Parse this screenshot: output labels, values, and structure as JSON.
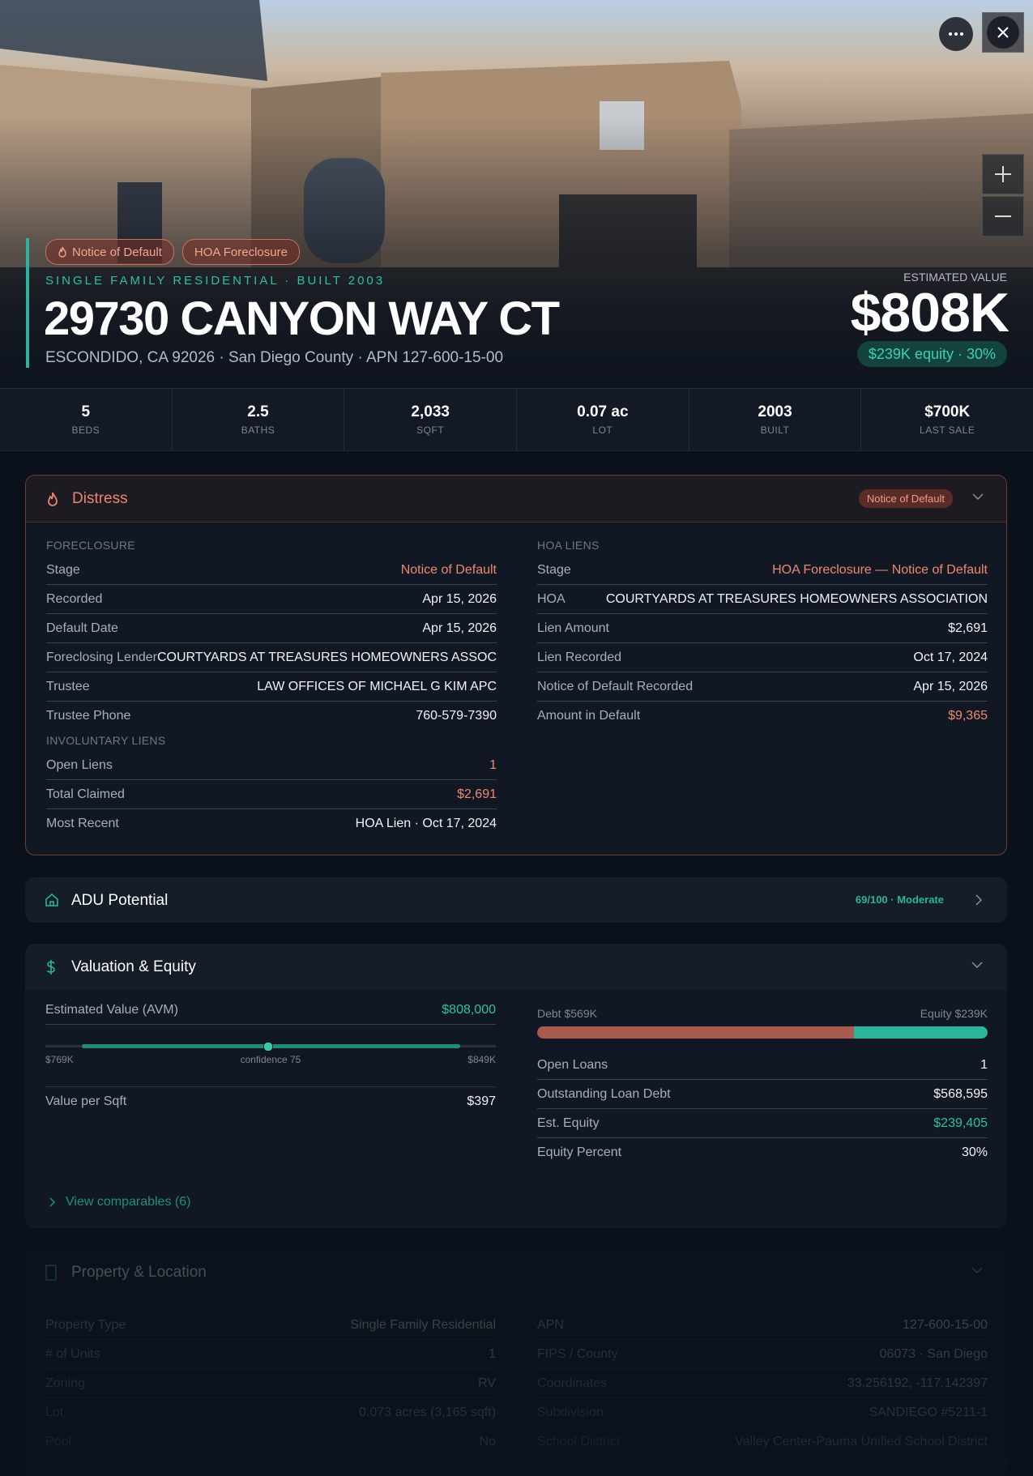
{
  "header": {
    "badges": [
      "Notice of Default",
      "HOA Foreclosure"
    ],
    "subtitle": "SINGLE FAMILY RESIDENTIAL · BUILT 2003",
    "title": "29730 CANYON WAY CT",
    "address": "ESCONDIDO, CA 92026 · San Diego County · APN 127-600-15-00",
    "value_label": "ESTIMATED VALUE",
    "value": "$808K",
    "equity": "$239K equity · 30%"
  },
  "stats": [
    {
      "value": "5",
      "label": "BEDS"
    },
    {
      "value": "2.5",
      "label": "BATHS"
    },
    {
      "value": "2,033",
      "label": "SQFT"
    },
    {
      "value": "0.07 ac",
      "label": "LOT"
    },
    {
      "value": "2003",
      "label": "BUILT"
    },
    {
      "value": "$700K",
      "label": "LAST SALE"
    }
  ],
  "distress": {
    "title": "Distress",
    "badge": "Notice of Default",
    "foreclosure": {
      "heading": "FORECLOSURE",
      "rows": [
        {
          "label": "Stage",
          "value": "Notice of Default"
        },
        {
          "label": "Recorded",
          "value": "Apr 15, 2026"
        },
        {
          "label": "Default Date",
          "value": "Apr 15, 2026"
        },
        {
          "label": "Foreclosing Lender",
          "value": "COURTYARDS AT TREASURES HOMEOWNERS ASSOC"
        },
        {
          "label": "Trustee",
          "value": "LAW OFFICES OF MICHAEL G KIM APC"
        },
        {
          "label": "Trustee Phone",
          "value": "760-579-7390"
        }
      ]
    },
    "involuntary_liens": {
      "heading": "INVOLUNTARY LIENS",
      "rows": [
        {
          "label": "Open Liens",
          "value": "1"
        },
        {
          "label": "Total Claimed",
          "value": "$2,691"
        },
        {
          "label": "Most Recent",
          "value": "HOA Lien · Oct 17, 2024"
        }
      ]
    },
    "hoa_liens": {
      "heading": "HOA LIENS",
      "rows": [
        {
          "label": "Stage",
          "value": "HOA Foreclosure — Notice of Default"
        },
        {
          "label": "HOA",
          "value": "COURTYARDS AT TREASURES HOMEOWNERS ASSOCIATION"
        },
        {
          "label": "Lien Amount",
          "value": "$2,691"
        },
        {
          "label": "Lien Recorded",
          "value": "Oct 17, 2024"
        },
        {
          "label": "Notice of Default Recorded",
          "value": "Apr 15, 2026"
        },
        {
          "label": "Amount in Default",
          "value": "$9,365"
        }
      ]
    }
  },
  "adu": {
    "title": "ADU Potential",
    "score": "69/100 · Moderate"
  },
  "valuation": {
    "title": "Valuation & Equity",
    "avm_label": "Estimated Value (AVM)",
    "avm": "$808,000",
    "range_low": "$769K",
    "confidence": "confidence 75",
    "range_high": "$849K",
    "left_rows": [
      {
        "label": "Value per Sqft",
        "value": "$397"
      }
    ],
    "debt_label": "Debt $569K",
    "equity_label": "Equity $239K",
    "right_rows": [
      {
        "label": "Open Loans",
        "value": "1"
      },
      {
        "label": "Outstanding Loan Debt",
        "value": "$568,595"
      },
      {
        "label": "Est. Equity",
        "value": "$239,405"
      },
      {
        "label": "Equity Percent",
        "value": "30%"
      }
    ],
    "comparables": "View comparables (6)"
  },
  "property": {
    "title": "Property & Location",
    "left_rows": [
      {
        "label": "Property Type",
        "value": "Single Family Residential"
      },
      {
        "label": "# of Units",
        "value": "1"
      },
      {
        "label": "Zoning",
        "value": "RV"
      },
      {
        "label": "Lot",
        "value": "0.073 acres (3,165 sqft)"
      },
      {
        "label": "Pool",
        "value": "No"
      }
    ],
    "right_rows": [
      {
        "label": "APN",
        "value": "127-600-15-00"
      },
      {
        "label": "FIPS / County",
        "value": "06073 · San Diego"
      },
      {
        "label": "Coordinates",
        "value": "33.256192, -117.142397"
      },
      {
        "label": "Subdivision",
        "value": "SANDIEGO #5211-1"
      },
      {
        "label": "School District",
        "value": "Valley Center-Pauma Unified School District"
      }
    ]
  }
}
